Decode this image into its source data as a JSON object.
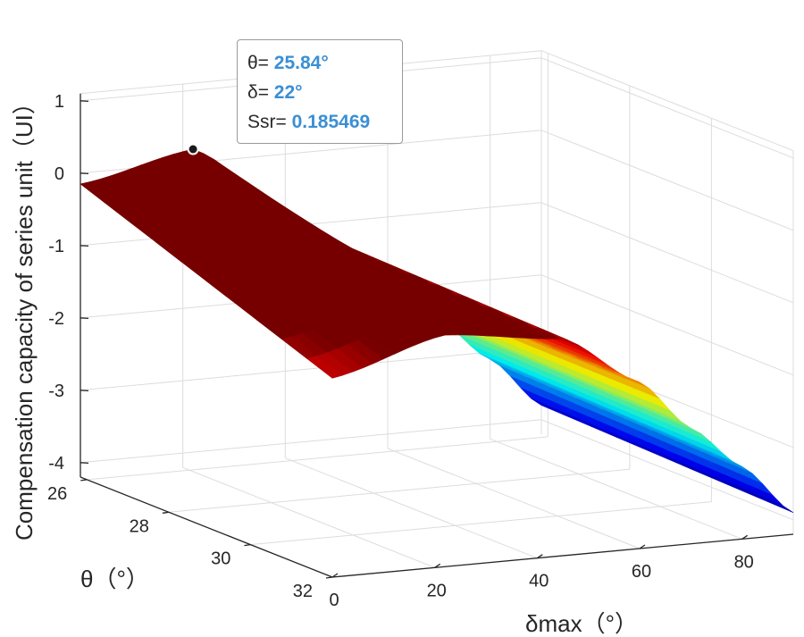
{
  "chart_data": {
    "type": "surface",
    "x": {
      "label": "δmax（°）",
      "ticks": [
        0,
        20,
        40,
        60,
        80
      ],
      "range": [
        0,
        90
      ]
    },
    "y": {
      "label": "θ（°）",
      "ticks": [
        26,
        28,
        30,
        32
      ],
      "range": [
        25.84,
        32
      ]
    },
    "z": {
      "label": "Compensation capacity of series unit（UI）",
      "ticks": [
        1,
        0,
        -1,
        -2,
        -3,
        -4
      ],
      "range": [
        -4.2,
        1
      ]
    },
    "surface_samples": {
      "delta": [
        0,
        22,
        45,
        60,
        70,
        80,
        90
      ],
      "z_at_theta_min": [
        -0.15,
        0.185469,
        -1.1,
        -1.9,
        -2.5,
        -3.1,
        -3.8
      ],
      "z_at_theta_max": [
        -1.45,
        -1.0,
        -1.2,
        -1.9,
        -2.6,
        -3.2,
        -3.9
      ]
    },
    "colormap": "jet",
    "grid": true
  },
  "datatip": {
    "theta_label": "θ=",
    "theta_value": "25.84°",
    "delta_label": "δ=",
    "delta_value": "22°",
    "ssr_label": "Ssr=",
    "ssr_value": "0.185469",
    "point": {
      "delta": 22,
      "theta": 25.84,
      "z": 0.185469
    }
  }
}
